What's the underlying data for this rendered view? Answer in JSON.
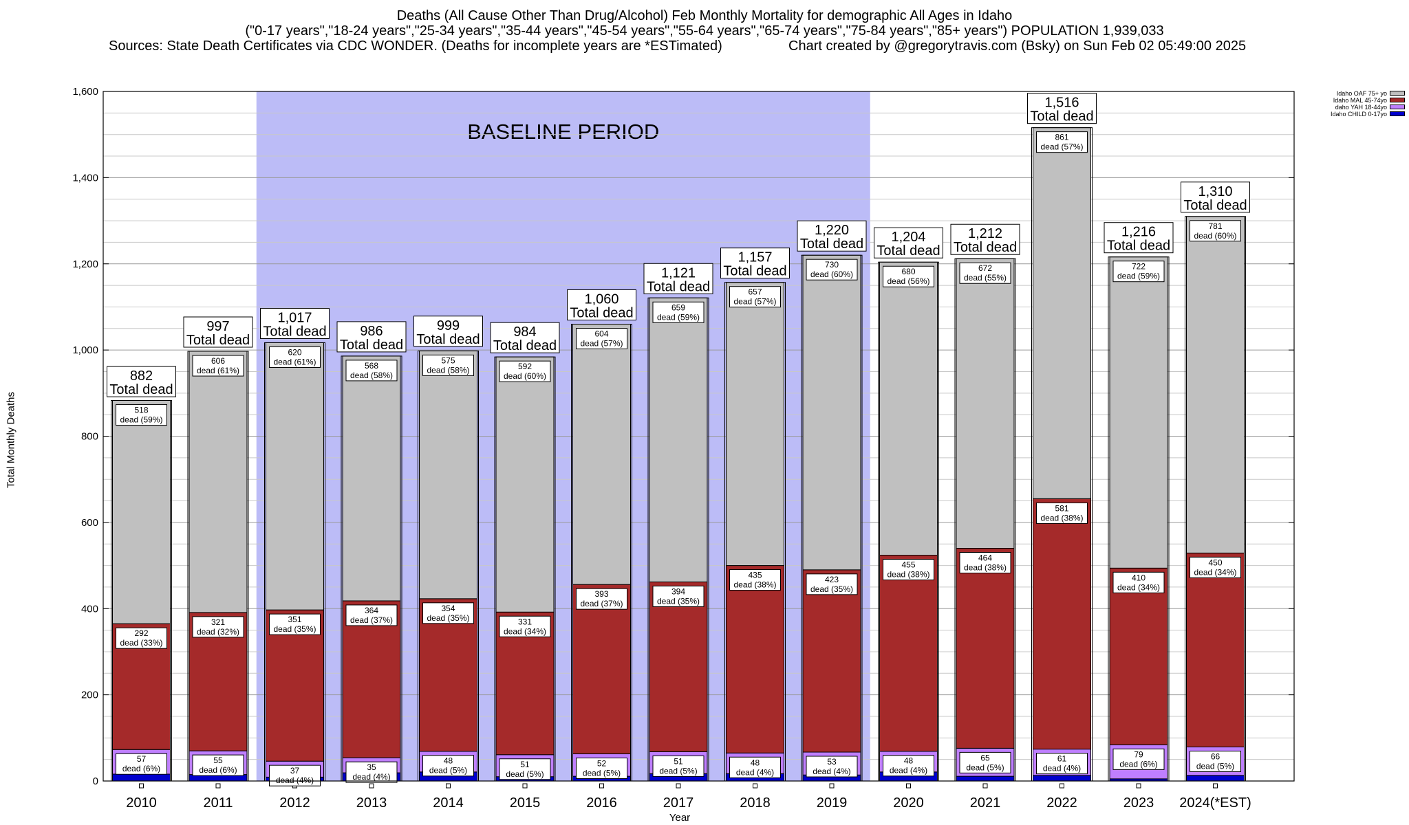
{
  "title": {
    "line1": "Deaths (All Cause Other Than Drug/Alcohol) Feb Monthly Mortality for demographic All Ages in Idaho",
    "line2": "(\"0-17 years\",\"18-24 years\",\"25-34 years\",\"35-44 years\",\"45-54 years\",\"55-64 years\",\"65-74 years\",\"75-84 years\",\"85+ years\") POPULATION 1,939,033",
    "sources": "Sources: State Death Certificates via CDC WONDER. (Deaths for incomplete years are *ESTimated)",
    "credit": "Chart created by @gregorytravis.com (Bsky) on Sun Feb 02 05:49:00 2025"
  },
  "colors": {
    "baseline_band": "#bcbcf7",
    "oaf": "#c0c0c0",
    "mal": "#a52a2a",
    "yah": "#bf7fff",
    "child": "#0000cd"
  },
  "chart_data": {
    "type": "bar",
    "stacked": true,
    "xlabel": "Year",
    "ylabel": "Total Monthly Deaths",
    "ylim": [
      0,
      1600
    ],
    "yticks": [
      "0",
      "200",
      "400",
      "600",
      "800",
      "1,000",
      "1,200",
      "1,400",
      "1,600"
    ],
    "grid": true,
    "legend_position": "top-right",
    "baseline_label": "BASELINE PERIOD",
    "baseline_range": [
      "2012",
      "2019"
    ],
    "categories": [
      "2010",
      "2011",
      "2012",
      "2013",
      "2014",
      "2015",
      "2016",
      "2017",
      "2018",
      "2019",
      "2020",
      "2021",
      "2022",
      "2023",
      "2024(*EST)"
    ],
    "totals": [
      882,
      997,
      1017,
      986,
      999,
      984,
      1060,
      1121,
      1157,
      1220,
      1204,
      1212,
      1516,
      1216,
      1310
    ],
    "total_labels": [
      "882",
      "997",
      "1,017",
      "986",
      "999",
      "984",
      "1,060",
      "1,121",
      "1,157",
      "1,220",
      "1,204",
      "1,212",
      "1,516",
      "1,216",
      "1,310"
    ],
    "total_suffix": "Total dead",
    "series": [
      {
        "name": "Idaho CHILD 0-17yo",
        "color": "#0000cd",
        "values": [
          16,
          15,
          9,
          19,
          21,
          10,
          11,
          17,
          17,
          14,
          21,
          11,
          13,
          5,
          13
        ]
      },
      {
        "name": "daho YAH 18-44yo",
        "color": "#bf7fff",
        "values": [
          57,
          55,
          37,
          35,
          48,
          51,
          52,
          51,
          48,
          53,
          48,
          65,
          61,
          79,
          66
        ],
        "pct": [
          6,
          6,
          4,
          4,
          5,
          5,
          5,
          5,
          4,
          4,
          4,
          5,
          4,
          6,
          5
        ]
      },
      {
        "name": "Idaho MAL 45-74yo",
        "color": "#a52a2a",
        "values": [
          292,
          321,
          351,
          364,
          354,
          331,
          393,
          394,
          435,
          423,
          455,
          464,
          581,
          410,
          450
        ],
        "pct": [
          33,
          32,
          35,
          37,
          35,
          34,
          37,
          35,
          38,
          35,
          38,
          38,
          38,
          34,
          34
        ]
      },
      {
        "name": "Idaho OAF 75+ yo",
        "color": "#c0c0c0",
        "values": [
          518,
          606,
          620,
          568,
          575,
          592,
          604,
          659,
          657,
          730,
          680,
          672,
          861,
          722,
          781
        ],
        "pct": [
          59,
          61,
          61,
          58,
          58,
          60,
          57,
          59,
          57,
          60,
          56,
          55,
          57,
          59,
          60
        ]
      }
    ],
    "segment_word": "dead"
  },
  "legend": {
    "items": [
      {
        "label": "Idaho OAF 75+ yo",
        "color": "#c0c0c0"
      },
      {
        "label": "Idaho MAL 45-74yo",
        "color": "#a52a2a"
      },
      {
        "label": "daho YAH 18-44yo",
        "color": "#bf7fff"
      },
      {
        "label": "Idaho CHILD 0-17yo",
        "color": "#0000cd"
      }
    ]
  }
}
